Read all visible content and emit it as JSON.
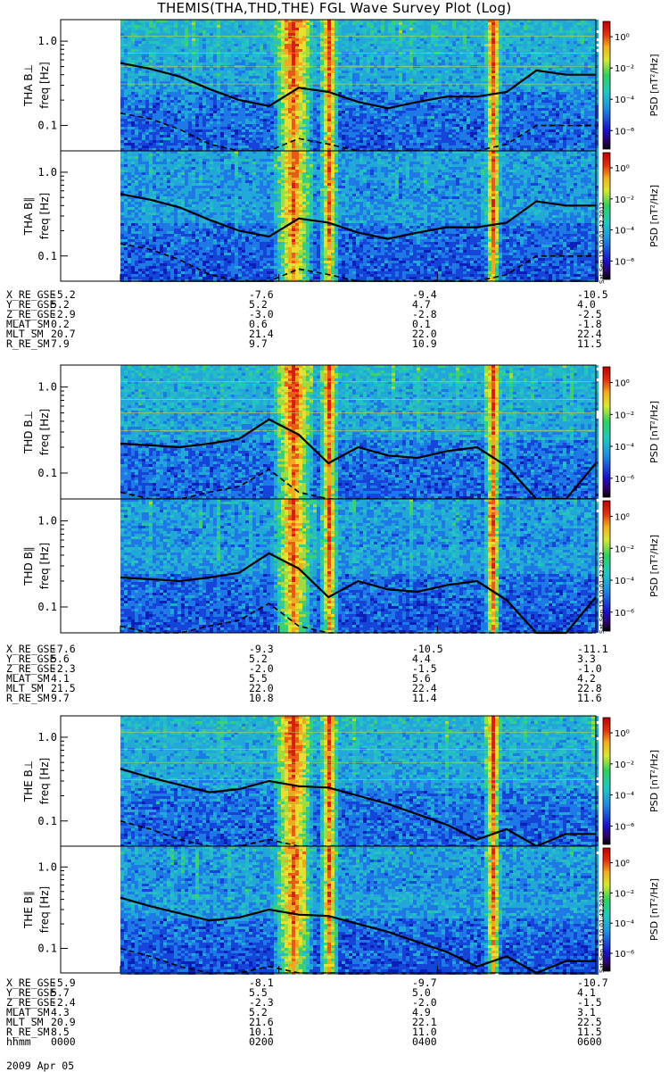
{
  "title": "THEMIS(THA,THD,THE) FGL Wave Survey Plot (Log)",
  "footer_date": "2009 Apr 05",
  "stamp": "Sat Sep 15 10:01:42 2012",
  "colorbar": {
    "label": "PSD [nT²/Hz]",
    "ticks": [
      "10⁰",
      "10⁻²",
      "10⁻⁴",
      "10⁻⁶"
    ]
  },
  "y_ticks": [
    "1.0",
    "0.1"
  ],
  "colors": {
    "noise_low": "#0a3bd6",
    "mid": "#21b3c6",
    "high": "#e8e030",
    "hot": "#d81e10"
  },
  "chart_data": [
    {
      "type": "heatmap",
      "probe": "THA",
      "panels": [
        {
          "ylabel_probe": "THA B⊥",
          "ylabel_axis": "freq [Hz]"
        },
        {
          "ylabel_probe": "THA B∥",
          "ylabel_axis": "freq [Hz]"
        }
      ],
      "yscale": "log",
      "x_ticks": [
        "0000",
        "0200",
        "0400",
        "0600"
      ],
      "solid_line_hz": [
        0.55,
        0.47,
        0.38,
        0.27,
        0.2,
        0.17,
        0.28,
        0.25,
        0.19,
        0.16,
        0.19,
        0.22,
        0.22,
        0.25,
        0.45,
        0.4,
        0.4
      ],
      "dashed_line_hz": [
        0.14,
        0.12,
        0.09,
        0.06,
        0.05,
        0.05,
        0.07,
        0.06,
        0.05,
        0.05,
        0.045,
        0.05,
        0.05,
        0.06,
        0.1,
        0.1,
        0.1
      ],
      "ephemeris": {
        "X_RE_GSE": [
          "-5.2",
          "-7.6",
          "-9.4",
          "-10.5"
        ],
        "Y_RE_GSE": [
          "5.2",
          "5.2",
          "4.7",
          "4.0"
        ],
        "Z_RE_GSE": [
          "-2.9",
          "-3.0",
          "-2.8",
          "-2.5"
        ],
        "MLAT_SM": [
          "0.2",
          "0.6",
          "0.1",
          "-1.8"
        ],
        "MLT_SM": [
          "20.7",
          "21.4",
          "22.0",
          "22.4"
        ],
        "R_RE_SM": [
          "7.9",
          "9.7",
          "10.9",
          "11.5"
        ]
      }
    },
    {
      "type": "heatmap",
      "probe": "THD",
      "panels": [
        {
          "ylabel_probe": "THD B⊥",
          "ylabel_axis": "freq [Hz]"
        },
        {
          "ylabel_probe": "THD B∥",
          "ylabel_axis": "freq [Hz]"
        }
      ],
      "yscale": "log",
      "x_ticks": [
        "0000",
        "0200",
        "0400",
        "0600"
      ],
      "solid_line_hz": [
        0.22,
        0.21,
        0.2,
        0.22,
        0.25,
        0.42,
        0.28,
        0.13,
        0.2,
        0.16,
        0.15,
        0.18,
        0.2,
        0.12,
        0.05,
        0.05,
        0.13
      ],
      "dashed_line_hz": [
        0.06,
        0.05,
        0.05,
        0.06,
        0.07,
        0.11,
        0.06,
        0.05,
        0.05,
        0.05,
        0.05,
        0.05,
        0.05,
        0.05,
        0.05,
        0.05,
        0.05
      ],
      "ephemeris": {
        "X_RE_GSE": [
          "-7.6",
          "-9.3",
          "-10.5",
          "-11.1"
        ],
        "Y_RE_GSE": [
          "5.6",
          "5.2",
          "4.4",
          "3.3"
        ],
        "Z_RE_GSE": [
          "-2.3",
          "-2.0",
          "-1.5",
          "-1.0"
        ],
        "MLAT_SM": [
          "4.1",
          "5.5",
          "5.6",
          "4.2"
        ],
        "MLT_SM": [
          "21.5",
          "22.0",
          "22.4",
          "22.8"
        ],
        "R_RE_SM": [
          "9.7",
          "10.8",
          "11.4",
          "11.6"
        ]
      }
    },
    {
      "type": "heatmap",
      "probe": "THE",
      "panels": [
        {
          "ylabel_probe": "THE B⊥",
          "ylabel_axis": "freq [Hz]"
        },
        {
          "ylabel_probe": "THE B∥",
          "ylabel_axis": "freq [Hz]"
        }
      ],
      "yscale": "log",
      "x_ticks": [
        "0000",
        "0200",
        "0400",
        "0600"
      ],
      "solid_line_hz": [
        0.42,
        0.33,
        0.27,
        0.22,
        0.24,
        0.3,
        0.26,
        0.25,
        0.2,
        0.16,
        0.12,
        0.09,
        0.06,
        0.08,
        0.05,
        0.07,
        0.07
      ],
      "dashed_line_hz": [
        0.1,
        0.08,
        0.06,
        0.05,
        0.05,
        0.06,
        0.05,
        0.05,
        0.05,
        0.05,
        0.05,
        0.05,
        0.05,
        0.05,
        0.05,
        0.05,
        0.05
      ],
      "ephemeris": {
        "X_RE_GSE": [
          "-5.9",
          "-8.1",
          "-9.7",
          "-10.7"
        ],
        "Y_RE_GSE": [
          "5.7",
          "5.5",
          "5.0",
          "4.1"
        ],
        "Z_RE_GSE": [
          "-2.4",
          "-2.3",
          "-2.0",
          "-1.5"
        ],
        "MLAT_SM": [
          "4.3",
          "5.2",
          "4.9",
          "3.1"
        ],
        "MLT_SM": [
          "20.9",
          "21.6",
          "22.1",
          "22.5"
        ],
        "R_RE_SM": [
          "8.5",
          "10.1",
          "11.0",
          "11.5"
        ],
        "hhmm": [
          "0000",
          "0200",
          "0400",
          "0600"
        ]
      }
    }
  ]
}
